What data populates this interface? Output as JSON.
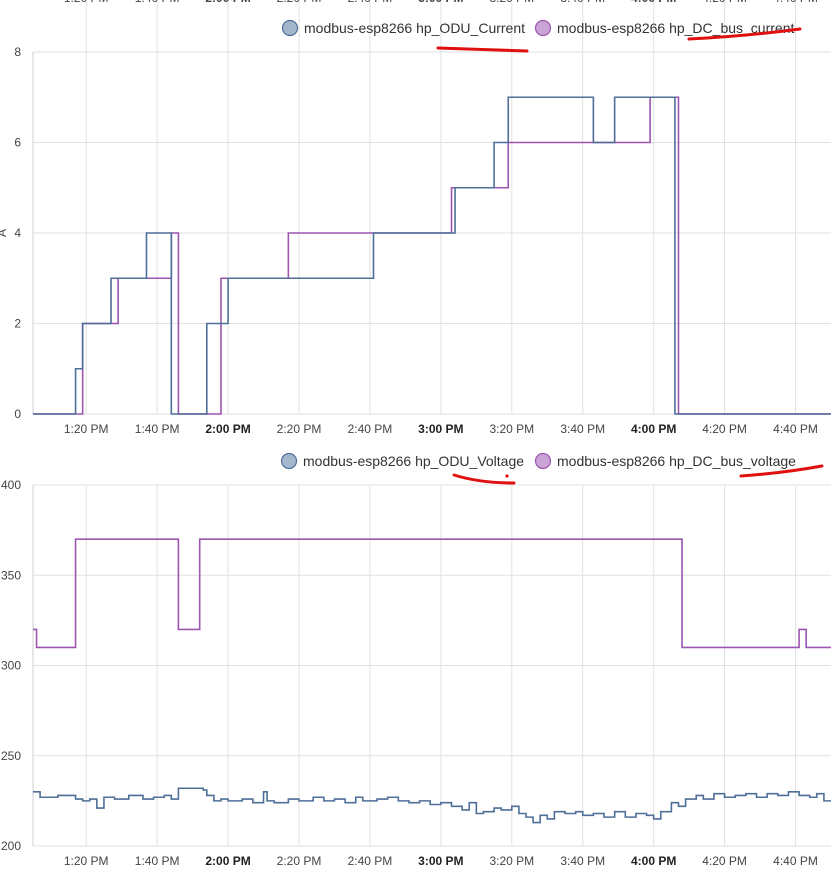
{
  "chart_data": [
    {
      "type": "line",
      "step": true,
      "xlim": [
        "13:05",
        "16:50"
      ],
      "ylim": [
        0,
        8
      ],
      "yticks": [
        0,
        2,
        4,
        6,
        8
      ],
      "ylabel": "A",
      "grid": true,
      "legend_position": "top-right",
      "x_tick_labels": [
        {
          "t": "13:20",
          "label": "1:20 PM",
          "bold": false
        },
        {
          "t": "13:40",
          "label": "1:40 PM",
          "bold": false
        },
        {
          "t": "14:00",
          "label": "2:00 PM",
          "bold": true
        },
        {
          "t": "14:20",
          "label": "2:20 PM",
          "bold": false
        },
        {
          "t": "14:40",
          "label": "2:40 PM",
          "bold": false
        },
        {
          "t": "15:00",
          "label": "3:00 PM",
          "bold": true
        },
        {
          "t": "15:20",
          "label": "3:20 PM",
          "bold": false
        },
        {
          "t": "15:40",
          "label": "3:40 PM",
          "bold": false
        },
        {
          "t": "16:00",
          "label": "4:00 PM",
          "bold": true
        },
        {
          "t": "16:20",
          "label": "4:20 PM",
          "bold": false
        },
        {
          "t": "16:40",
          "label": "4:40 PM",
          "bold": false
        }
      ],
      "series": [
        {
          "name": "modbus-esp8266 hp_ODU_Current",
          "color": "#4f6f99",
          "legend_fill": "#a3b6cc",
          "points": [
            [
              "13:05",
              0
            ],
            [
              "13:17",
              1
            ],
            [
              "13:19",
              2
            ],
            [
              "13:26",
              2
            ],
            [
              "13:27",
              3
            ],
            [
              "13:36",
              3
            ],
            [
              "13:37",
              4
            ],
            [
              "13:43",
              4
            ],
            [
              "13:44",
              0
            ],
            [
              "13:53",
              0
            ],
            [
              "13:54",
              2
            ],
            [
              "13:59",
              2
            ],
            [
              "14:00",
              3
            ],
            [
              "14:40",
              3
            ],
            [
              "14:41",
              4
            ],
            [
              "15:03",
              4
            ],
            [
              "15:04",
              5
            ],
            [
              "15:14",
              5
            ],
            [
              "15:15",
              6
            ],
            [
              "15:18",
              6
            ],
            [
              "15:19",
              7
            ],
            [
              "15:42",
              7
            ],
            [
              "15:43",
              6
            ],
            [
              "15:48",
              6
            ],
            [
              "15:49",
              7
            ],
            [
              "16:05",
              7
            ],
            [
              "16:06",
              0
            ],
            [
              "16:50",
              0
            ]
          ]
        },
        {
          "name": "modbus-esp8266 hp_DC_bus_current",
          "color": "#9c55b0",
          "legend_fill": "#c9a4d5",
          "points": [
            [
              "13:05",
              0
            ],
            [
              "13:18",
              0
            ],
            [
              "13:19",
              2
            ],
            [
              "13:28",
              2
            ],
            [
              "13:29",
              3
            ],
            [
              "13:43",
              3
            ],
            [
              "13:44",
              4
            ],
            [
              "13:45",
              4
            ],
            [
              "13:46",
              0
            ],
            [
              "13:57",
              0
            ],
            [
              "13:58",
              3
            ],
            [
              "14:16",
              3
            ],
            [
              "14:17",
              4
            ],
            [
              "14:40",
              4
            ],
            [
              "15:02",
              4
            ],
            [
              "15:03",
              5
            ],
            [
              "15:18",
              5
            ],
            [
              "15:19",
              6
            ],
            [
              "15:58",
              6
            ],
            [
              "15:59",
              7
            ],
            [
              "16:06",
              7
            ],
            [
              "16:07",
              0
            ],
            [
              "16:50",
              0
            ]
          ]
        }
      ]
    },
    {
      "type": "line",
      "step": true,
      "xlim": [
        "13:05",
        "16:50"
      ],
      "ylim": [
        200,
        400
      ],
      "yticks": [
        200,
        250,
        300,
        350,
        400
      ],
      "grid": true,
      "legend_position": "top-right",
      "x_tick_labels": [
        {
          "t": "13:20",
          "label": "1:20 PM",
          "bold": false
        },
        {
          "t": "13:40",
          "label": "1:40 PM",
          "bold": false
        },
        {
          "t": "14:00",
          "label": "2:00 PM",
          "bold": true
        },
        {
          "t": "14:20",
          "label": "2:20 PM",
          "bold": false
        },
        {
          "t": "14:40",
          "label": "2:40 PM",
          "bold": false
        },
        {
          "t": "15:00",
          "label": "3:00 PM",
          "bold": true
        },
        {
          "t": "15:20",
          "label": "3:20 PM",
          "bold": false
        },
        {
          "t": "15:40",
          "label": "3:40 PM",
          "bold": false
        },
        {
          "t": "16:00",
          "label": "4:00 PM",
          "bold": true
        },
        {
          "t": "16:20",
          "label": "4:20 PM",
          "bold": false
        },
        {
          "t": "16:40",
          "label": "4:40 PM",
          "bold": false
        }
      ],
      "series": [
        {
          "name": "modbus-esp8266 hp_ODU_Voltage",
          "color": "#4f6f99",
          "legend_fill": "#a3b6cc",
          "points": [
            [
              "13:05",
              230
            ],
            [
              "13:07",
              227
            ],
            [
              "13:12",
              228
            ],
            [
              "13:17",
              226
            ],
            [
              "13:19",
              225
            ],
            [
              "13:21",
              226
            ],
            [
              "13:23",
              221
            ],
            [
              "13:25",
              227
            ],
            [
              "13:28",
              226
            ],
            [
              "13:32",
              228
            ],
            [
              "13:36",
              226
            ],
            [
              "13:39",
              227
            ],
            [
              "13:42",
              228
            ],
            [
              "13:44",
              226
            ],
            [
              "13:46",
              232
            ],
            [
              "13:53",
              231
            ],
            [
              "13:54",
              228
            ],
            [
              "13:56",
              225
            ],
            [
              "13:58",
              226
            ],
            [
              "14:00",
              225
            ],
            [
              "14:04",
              226
            ],
            [
              "14:07",
              224
            ],
            [
              "14:10",
              230
            ],
            [
              "14:11",
              225
            ],
            [
              "14:13",
              224
            ],
            [
              "14:17",
              226
            ],
            [
              "14:20",
              225
            ],
            [
              "14:24",
              227
            ],
            [
              "14:27",
              225
            ],
            [
              "14:30",
              226
            ],
            [
              "14:33",
              224
            ],
            [
              "14:36",
              227
            ],
            [
              "14:38",
              225
            ],
            [
              "14:42",
              226
            ],
            [
              "14:45",
              227
            ],
            [
              "14:48",
              225
            ],
            [
              "14:51",
              224
            ],
            [
              "14:54",
              225
            ],
            [
              "14:57",
              223
            ],
            [
              "15:00",
              224
            ],
            [
              "15:03",
              222
            ],
            [
              "15:06",
              220
            ],
            [
              "15:08",
              224
            ],
            [
              "15:10",
              218
            ],
            [
              "15:12",
              219
            ],
            [
              "15:15",
              221
            ],
            [
              "15:17",
              220
            ],
            [
              "15:20",
              222
            ],
            [
              "15:22",
              218
            ],
            [
              "15:24",
              216
            ],
            [
              "15:26",
              213
            ],
            [
              "15:28",
              217
            ],
            [
              "15:30",
              215
            ],
            [
              "15:32",
              219
            ],
            [
              "15:35",
              218
            ],
            [
              "15:38",
              219
            ],
            [
              "15:40",
              217
            ],
            [
              "15:43",
              218
            ],
            [
              "15:46",
              216
            ],
            [
              "15:49",
              219
            ],
            [
              "15:52",
              216
            ],
            [
              "15:55",
              218
            ],
            [
              "15:58",
              217
            ],
            [
              "16:00",
              215
            ],
            [
              "16:02",
              219
            ],
            [
              "16:05",
              224
            ],
            [
              "16:07",
              222
            ],
            [
              "16:09",
              226
            ],
            [
              "16:12",
              228
            ],
            [
              "16:14",
              226
            ],
            [
              "16:17",
              229
            ],
            [
              "16:20",
              227
            ],
            [
              "16:23",
              228
            ],
            [
              "16:26",
              229
            ],
            [
              "16:29",
              227
            ],
            [
              "16:32",
              229
            ],
            [
              "16:35",
              228
            ],
            [
              "16:38",
              230
            ],
            [
              "16:41",
              228
            ],
            [
              "16:44",
              227
            ],
            [
              "16:46",
              229
            ],
            [
              "16:48",
              225
            ],
            [
              "16:50",
              225
            ]
          ]
        },
        {
          "name": "modbus-esp8266 hp_DC_bus_voltage",
          "color": "#9c55b0",
          "legend_fill": "#c9a4d5",
          "points": [
            [
              "13:05",
              320
            ],
            [
              "13:06",
              310
            ],
            [
              "13:17",
              310
            ],
            [
              "13:17",
              370
            ],
            [
              "13:46",
              370
            ],
            [
              "13:46",
              320
            ],
            [
              "13:52",
              320
            ],
            [
              "13:52",
              370
            ],
            [
              "16:08",
              370
            ],
            [
              "16:08",
              310
            ],
            [
              "16:41",
              310
            ],
            [
              "16:41",
              320
            ],
            [
              "16:43",
              320
            ],
            [
              "16:43",
              310
            ],
            [
              "16:50",
              310
            ]
          ]
        }
      ]
    }
  ]
}
